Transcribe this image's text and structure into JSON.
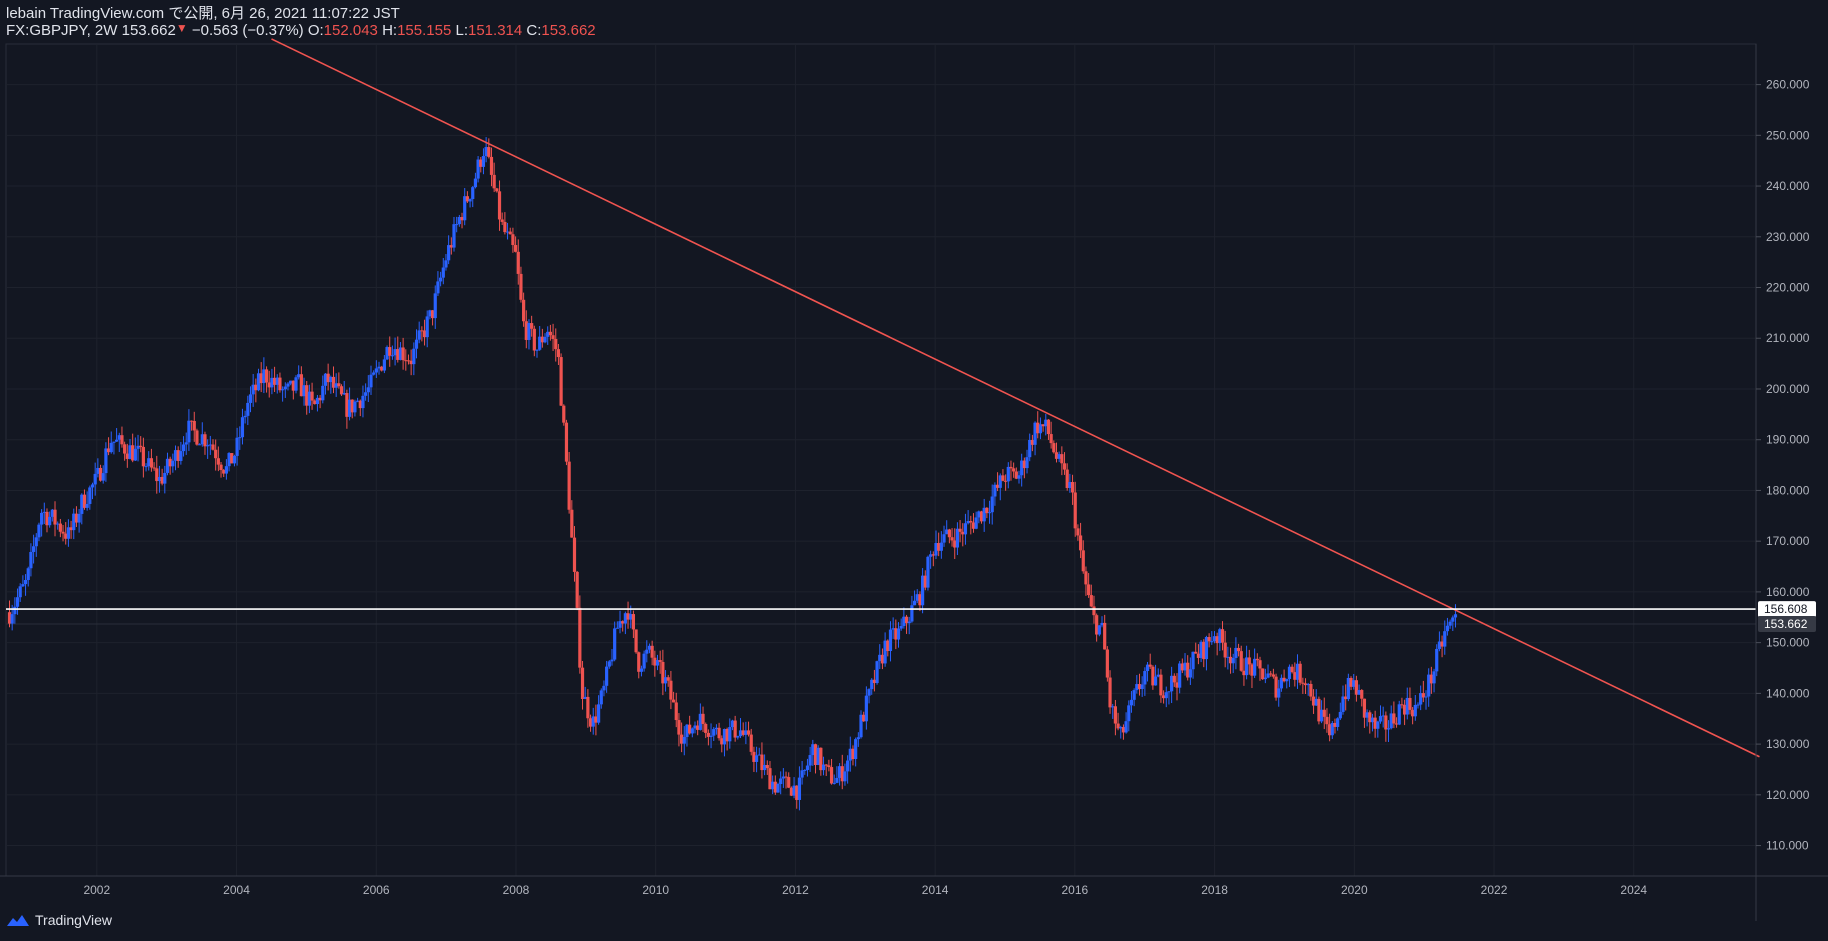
{
  "header": {
    "published": "lebain TradingView.com で公開, 6月 26, 2021 11:07:22 JST",
    "symbol": "FX:GBPJPY, 2W",
    "last": "153.662",
    "change_arrow": "▼",
    "change": "−0.563 (−0.37%)",
    "o_label": "O:",
    "o_value": "152.043",
    "h_label": "H:",
    "h_value": "155.155",
    "l_label": "L:",
    "l_value": "151.314",
    "c_label": "C:",
    "c_value": "153.662"
  },
  "footer": {
    "brand": "TradingView"
  },
  "colors": {
    "background": "#131722",
    "up": "#2962ff",
    "down": "#ef5350",
    "trendline": "#f05450",
    "hline": "#ffffff",
    "grid": "#1e222d",
    "axis_text": "#b2b5be"
  },
  "chart_data": {
    "type": "candlestick",
    "symbol": "FX:GBPJPY",
    "interval": "2W",
    "x_range": [
      2000.7,
      2025.75
    ],
    "ylim": [
      104,
      268
    ],
    "x_ticks": [
      "2002",
      "2004",
      "2006",
      "2008",
      "2010",
      "2012",
      "2014",
      "2016",
      "2018",
      "2020",
      "2022",
      "2024"
    ],
    "y_ticks": [
      "110.000",
      "120.000",
      "130.000",
      "140.000",
      "150.000",
      "160.000",
      "170.000",
      "180.000",
      "190.000",
      "200.000",
      "210.000",
      "220.000",
      "230.000",
      "240.000",
      "250.000",
      "260.000"
    ],
    "close_path": [
      [
        2000.75,
        156
      ],
      [
        2001.0,
        162
      ],
      [
        2001.2,
        176
      ],
      [
        2001.4,
        174
      ],
      [
        2001.6,
        171
      ],
      [
        2001.8,
        178
      ],
      [
        2002.0,
        182
      ],
      [
        2002.2,
        190
      ],
      [
        2002.6,
        187
      ],
      [
        2002.9,
        182
      ],
      [
        2003.1,
        186
      ],
      [
        2003.3,
        192
      ],
      [
        2003.6,
        190
      ],
      [
        2003.85,
        184
      ],
      [
        2004.0,
        188
      ],
      [
        2004.15,
        197
      ],
      [
        2004.4,
        203
      ],
      [
        2004.7,
        199
      ],
      [
        2004.9,
        201
      ],
      [
        2005.1,
        196
      ],
      [
        2005.3,
        202
      ],
      [
        2005.6,
        196
      ],
      [
        2005.9,
        200
      ],
      [
        2006.2,
        209
      ],
      [
        2006.5,
        206
      ],
      [
        2006.8,
        215
      ],
      [
        2007.0,
        226
      ],
      [
        2007.2,
        234
      ],
      [
        2007.4,
        241
      ],
      [
        2007.55,
        248
      ],
      [
        2007.8,
        232
      ],
      [
        2008.0,
        226
      ],
      [
        2008.1,
        213
      ],
      [
        2008.3,
        208
      ],
      [
        2008.45,
        212
      ],
      [
        2008.6,
        207
      ],
      [
        2008.75,
        180
      ],
      [
        2008.85,
        160
      ],
      [
        2008.95,
        140
      ],
      [
        2009.1,
        134
      ],
      [
        2009.25,
        140
      ],
      [
        2009.45,
        153
      ],
      [
        2009.6,
        157
      ],
      [
        2009.75,
        146
      ],
      [
        2009.9,
        148
      ],
      [
        2010.15,
        142
      ],
      [
        2010.4,
        131
      ],
      [
        2010.6,
        135
      ],
      [
        2010.9,
        132
      ],
      [
        2011.2,
        133
      ],
      [
        2011.45,
        127
      ],
      [
        2011.7,
        122
      ],
      [
        2011.9,
        122
      ],
      [
        2012.05,
        121
      ],
      [
        2012.25,
        129
      ],
      [
        2012.45,
        124
      ],
      [
        2012.6,
        123
      ],
      [
        2012.8,
        128
      ],
      [
        2013.0,
        137
      ],
      [
        2013.3,
        150
      ],
      [
        2013.5,
        152
      ],
      [
        2013.8,
        160
      ],
      [
        2014.0,
        170
      ],
      [
        2014.3,
        171
      ],
      [
        2014.55,
        174
      ],
      [
        2014.75,
        177
      ],
      [
        2015.0,
        183
      ],
      [
        2015.2,
        183
      ],
      [
        2015.35,
        189
      ],
      [
        2015.45,
        193
      ],
      [
        2015.6,
        192
      ],
      [
        2015.8,
        184
      ],
      [
        2015.95,
        180
      ],
      [
        2016.1,
        165
      ],
      [
        2016.25,
        155
      ],
      [
        2016.4,
        152
      ],
      [
        2016.5,
        138
      ],
      [
        2016.65,
        131
      ],
      [
        2016.85,
        139
      ],
      [
        2017.0,
        144
      ],
      [
        2017.3,
        141
      ],
      [
        2017.6,
        145
      ],
      [
        2017.85,
        149
      ],
      [
        2018.0,
        152
      ],
      [
        2018.2,
        148
      ],
      [
        2018.5,
        145
      ],
      [
        2018.7,
        144
      ],
      [
        2018.9,
        141
      ],
      [
        2019.05,
        145
      ],
      [
        2019.3,
        143
      ],
      [
        2019.5,
        136
      ],
      [
        2019.65,
        131
      ],
      [
        2019.85,
        140
      ],
      [
        2020.0,
        142
      ],
      [
        2020.15,
        136
      ],
      [
        2020.3,
        133
      ],
      [
        2020.5,
        134
      ],
      [
        2020.7,
        138
      ],
      [
        2020.9,
        137
      ],
      [
        2021.1,
        143
      ],
      [
        2021.3,
        152
      ],
      [
        2021.45,
        155
      ],
      [
        2021.48,
        153.662
      ]
    ],
    "lines": [
      {
        "kind": "trendline",
        "from": [
          2004.5,
          269
        ],
        "to": [
          2025.8,
          127.5
        ]
      },
      {
        "kind": "horizontal",
        "price": 156.608,
        "label": "156.608"
      }
    ],
    "last_price": {
      "value": 153.662,
      "label": "153.662"
    }
  }
}
